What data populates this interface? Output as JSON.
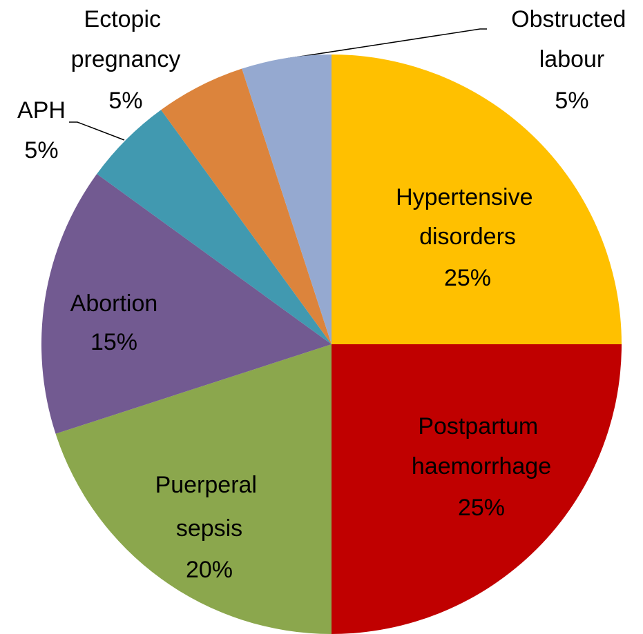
{
  "chart_data": {
    "type": "pie",
    "categories": [
      "Hypertensive disorders",
      "Postpartum haemorrhage",
      "Puerperal sepsis",
      "Abortion",
      "APH",
      "Ectopic pregnancy",
      "Obstructed labour"
    ],
    "values": [
      25,
      25,
      20,
      15,
      5,
      5,
      5
    ],
    "value_labels": [
      "25%",
      "25%",
      "20%",
      "15%",
      "5%",
      "5%",
      "5%"
    ],
    "colors": [
      "#ffc000",
      "#c00000",
      "#8ba74d",
      "#725a91",
      "#4199b0",
      "#dc843c",
      "#95a9d0"
    ]
  }
}
